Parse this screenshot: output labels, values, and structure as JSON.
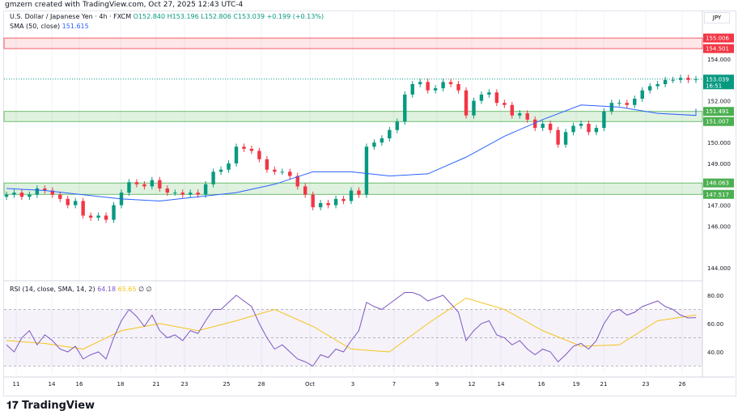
{
  "credit": "gmzern created with TradingView.com, Oct 27, 2025 12:43 UTC-4",
  "legend": {
    "symbol": "U.S. Dollar / Japanese Yen · 4h · FXCM",
    "o": "O152.840",
    "h": "H153.196",
    "l": "L152.806",
    "c": "C153.039",
    "chg": "+0.199 (+0.13%)",
    "sma_label": "SMA (50, close)",
    "sma_value": "151.615"
  },
  "rsi_legend": {
    "label": "RSI (14, close, SMA, 14, 2)",
    "rsi": "64.18",
    "sma": "65.65",
    "extra": "∅ ∅"
  },
  "currency": "JPY",
  "price_axis": [
    "154.000",
    "152.000",
    "150.000",
    "149.000",
    "147.000",
    "146.000",
    "144.000"
  ],
  "price_levels": [
    {
      "label": "155.006",
      "value": 155.006,
      "color": "#f23645"
    },
    {
      "label": "154.501",
      "value": 154.501,
      "color": "#f23645"
    },
    {
      "label": "153.039",
      "value": 153.039,
      "color": "#089981",
      "sub": "16:51"
    },
    {
      "label": "151.491",
      "value": 151.491,
      "color": "#4caf50"
    },
    {
      "label": "151.007",
      "value": 151.007,
      "color": "#4caf50"
    },
    {
      "label": "148.063",
      "value": 148.063,
      "color": "#4caf50"
    },
    {
      "label": "147.517",
      "value": 147.517,
      "color": "#4caf50"
    }
  ],
  "rsi_axis": [
    "80.00",
    "60.00",
    "40.00"
  ],
  "time_axis": [
    "11",
    "14",
    "16",
    "18",
    "21",
    "23",
    "25",
    "28",
    "Oct",
    "3",
    "7",
    "9",
    "12",
    "14",
    "16",
    "19",
    "21",
    "23",
    "26"
  ],
  "logo": "TradingView",
  "colors": {
    "up": "#089981",
    "down": "#f23645",
    "sma": "#2962ff",
    "rsi": "#7e57c2",
    "rsi_sma": "#f5c518"
  },
  "chart_data": {
    "type": "candlestick",
    "closes": [
      147.5,
      147.6,
      147.4,
      147.5,
      147.8,
      147.7,
      147.5,
      147.3,
      147.0,
      147.2,
      146.5,
      146.4,
      146.5,
      146.3,
      147.0,
      147.6,
      148.1,
      148.0,
      147.9,
      148.2,
      147.8,
      147.6,
      147.6,
      147.5,
      147.6,
      147.5,
      148.0,
      148.6,
      148.7,
      149.0,
      149.8,
      149.7,
      149.6,
      149.2,
      148.7,
      148.6,
      148.6,
      148.4,
      147.9,
      147.5,
      146.9,
      147.1,
      147.0,
      147.3,
      147.2,
      147.7,
      147.5,
      149.8,
      150.0,
      150.2,
      150.6,
      151.0,
      152.3,
      152.8,
      152.9,
      152.5,
      152.6,
      152.9,
      152.8,
      152.5,
      151.3,
      152.0,
      152.3,
      152.4,
      151.9,
      151.8,
      151.3,
      151.4,
      151.1,
      150.7,
      150.9,
      150.6,
      149.9,
      150.5,
      150.8,
      150.9,
      150.5,
      150.7,
      151.5,
      151.9,
      151.9,
      151.8,
      152.1,
      152.5,
      152.7,
      152.8,
      153.0,
      153.0,
      153.1,
      153.0,
      153.039
    ],
    "sma_every5": [
      147.8,
      147.7,
      147.5,
      147.3,
      147.2,
      147.4,
      147.6,
      148.0,
      148.6,
      148.6,
      148.4,
      148.5,
      149.3,
      150.3,
      151.1,
      151.8,
      151.7,
      151.4,
      151.3,
      151.615
    ],
    "rsi": [
      45,
      40,
      50,
      55,
      45,
      52,
      48,
      42,
      40,
      44,
      35,
      38,
      40,
      35,
      50,
      62,
      70,
      65,
      58,
      66,
      55,
      50,
      52,
      48,
      55,
      53,
      62,
      70,
      70,
      75,
      80,
      76,
      72,
      60,
      50,
      42,
      45,
      40,
      35,
      33,
      30,
      38,
      36,
      42,
      40,
      48,
      55,
      75,
      72,
      70,
      74,
      78,
      82,
      82,
      80,
      76,
      78,
      80,
      74,
      68,
      48,
      55,
      60,
      62,
      52,
      50,
      45,
      48,
      42,
      38,
      42,
      40,
      33,
      38,
      44,
      46,
      42,
      48,
      60,
      68,
      70,
      66,
      68,
      72,
      74,
      76,
      72,
      70,
      66,
      64,
      64.18
    ],
    "rsi_sma_every5": [
      48,
      46,
      42,
      55,
      60,
      55,
      62,
      70,
      58,
      42,
      40,
      60,
      78,
      70,
      55,
      44,
      45,
      62,
      66,
      65.65
    ],
    "ylim": [
      143.5,
      155.5
    ],
    "rsi_ylim": [
      25,
      85
    ],
    "rsi_bands": [
      30,
      70
    ]
  }
}
